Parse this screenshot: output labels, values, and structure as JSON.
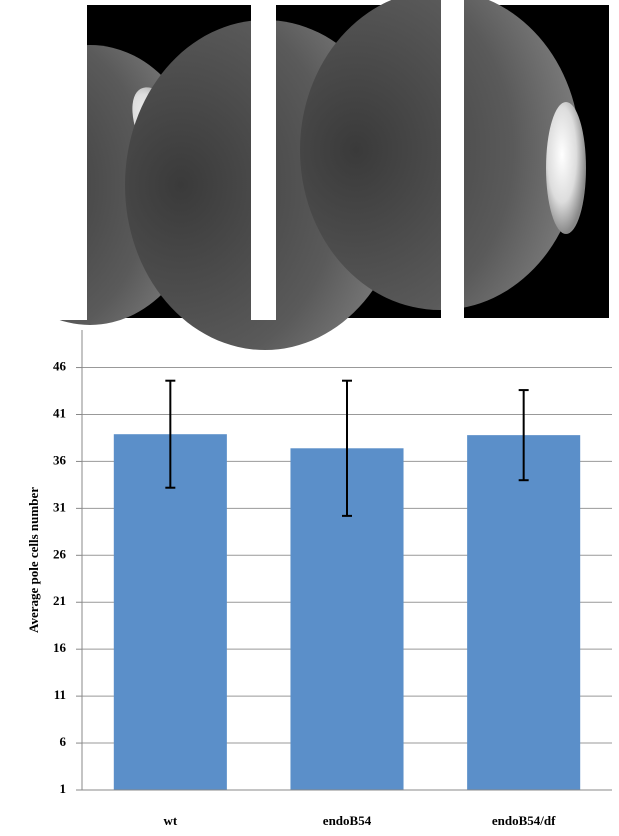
{
  "chart_data": {
    "type": "bar",
    "y_label": "Average pole cells number",
    "categories": [
      "wt",
      "endoB54",
      "endoB54/df"
    ],
    "values": [
      38.9,
      37.4,
      38.8
    ],
    "errors": [
      5.7,
      7.2,
      4.8
    ],
    "color": "#5b8fc9",
    "ylim": [
      1,
      50
    ],
    "yticks": [
      1,
      6,
      11,
      16,
      21,
      26,
      31,
      36,
      41,
      46
    ],
    "grid": true
  }
}
